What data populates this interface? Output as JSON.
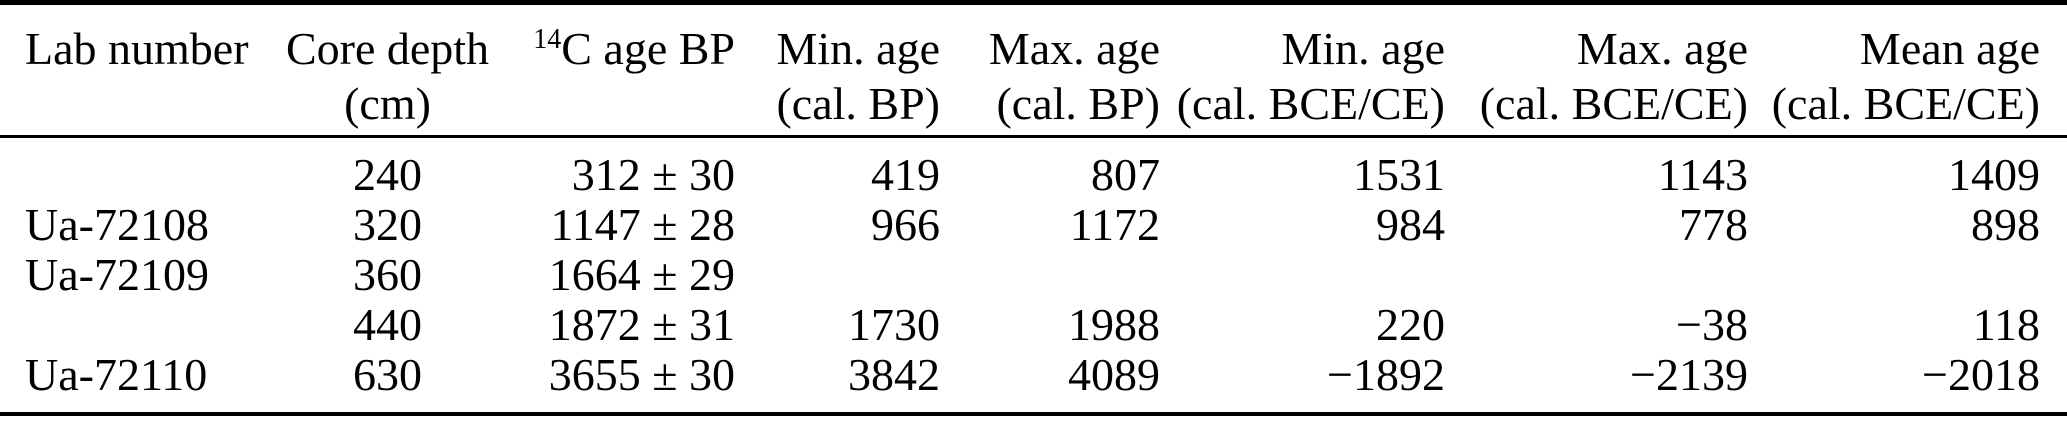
{
  "table": {
    "description": "Radiocarbon dating calibration table",
    "colors": {
      "text": "#000000",
      "background": "#ffffff",
      "rule": "#000000"
    },
    "columns": [
      {
        "line1": "Lab number",
        "line2": ""
      },
      {
        "line1": "Core depth",
        "line2": "(cm)"
      },
      {
        "line1_sup": "14",
        "line1": "C age BP",
        "line2": ""
      },
      {
        "line1": "Min. age",
        "line2": "(cal. BP)"
      },
      {
        "line1": "Max. age",
        "line2": "(cal. BP)"
      },
      {
        "line1": "Min. age",
        "line2": "(cal. BCE/CE)"
      },
      {
        "line1": "Max. age",
        "line2": "(cal. BCE/CE)"
      },
      {
        "line1": "Mean age",
        "line2": "(cal. BCE/CE)"
      }
    ],
    "rows": [
      {
        "cells": [
          "",
          "240",
          "312 ± 30",
          "419",
          "807",
          "1531",
          "1143",
          "1409"
        ]
      },
      {
        "cells": [
          "Ua-72108",
          "320",
          "1147 ± 28",
          "966",
          "1172",
          "984",
          "778",
          "898"
        ]
      },
      {
        "cells": [
          "Ua-72109",
          "360",
          "1664 ± 29",
          "",
          "",
          "",
          "",
          ""
        ]
      },
      {
        "cells": [
          "",
          "440",
          "1872 ± 31",
          "1730",
          "1988",
          "220",
          "−38",
          "118"
        ]
      },
      {
        "cells": [
          "Ua-72110",
          "630",
          "3655 ± 30",
          "3842",
          "4089",
          "−1892",
          "−2139",
          "−2018"
        ]
      }
    ]
  }
}
